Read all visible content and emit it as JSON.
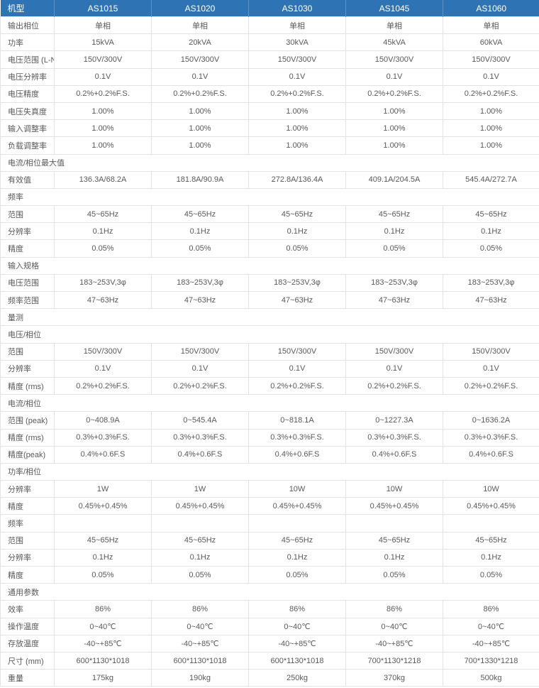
{
  "colors": {
    "header_bg": "#2E74B5",
    "header_text": "#FFFFFF",
    "header_separator": "#5B92C7",
    "grid_border": "#E3E3E3",
    "body_text": "#595959"
  },
  "table": {
    "header": {
      "label": "机型",
      "columns": [
        "AS1015",
        "AS1020",
        "AS1030",
        "AS1045",
        "AS1060"
      ]
    },
    "rows": [
      {
        "type": "data",
        "label": "输出相位",
        "values": [
          "单相",
          "单相",
          "单相",
          "单相",
          "单相"
        ]
      },
      {
        "type": "data",
        "label": "功率",
        "values": [
          "15kVA",
          "20kVA",
          "30kVA",
          "45kVA",
          "60kVA"
        ]
      },
      {
        "type": "data",
        "label": "电压范围 (L-N)",
        "values": [
          "150V/300V",
          "150V/300V",
          "150V/300V",
          "150V/300V",
          "150V/300V"
        ]
      },
      {
        "type": "data",
        "label": "电压分辨率",
        "values": [
          "0.1V",
          "0.1V",
          "0.1V",
          "0.1V",
          "0.1V"
        ]
      },
      {
        "type": "data",
        "label": "电压精度",
        "values": [
          "0.2%+0.2%F.S.",
          "0.2%+0.2%F.S.",
          "0.2%+0.2%F.S.",
          "0.2%+0.2%F.S.",
          "0.2%+0.2%F.S."
        ]
      },
      {
        "type": "data",
        "label": "电压失真度",
        "values": [
          "1.00%",
          "1.00%",
          "1.00%",
          "1.00%",
          "1.00%"
        ]
      },
      {
        "type": "data",
        "label": "输入调整率",
        "values": [
          "1.00%",
          "1.00%",
          "1.00%",
          "1.00%",
          "1.00%"
        ]
      },
      {
        "type": "data",
        "label": "负载调整率",
        "values": [
          "1.00%",
          "1.00%",
          "1.00%",
          "1.00%",
          "1.00%"
        ]
      },
      {
        "type": "section",
        "label": "电流/相位最大值"
      },
      {
        "type": "data",
        "label": "有效值",
        "values": [
          "136.3A/68.2A",
          "181.8A/90.9A",
          "272.8A/136.4A",
          "409.1A/204.5A",
          "545.4A/272.7A"
        ]
      },
      {
        "type": "section",
        "label": "频率"
      },
      {
        "type": "data",
        "label": "范围",
        "values": [
          "45~65Hz",
          "45~65Hz",
          "45~65Hz",
          "45~65Hz",
          "45~65Hz"
        ]
      },
      {
        "type": "data",
        "label": "分辨率",
        "values": [
          "0.1Hz",
          "0.1Hz",
          "0.1Hz",
          "0.1Hz",
          "0.1Hz"
        ]
      },
      {
        "type": "data",
        "label": "精度",
        "values": [
          "0.05%",
          "0.05%",
          "0.05%",
          "0.05%",
          "0.05%"
        ]
      },
      {
        "type": "section",
        "label": "输入规格"
      },
      {
        "type": "data",
        "label": "电压范围",
        "values": [
          "183~253V,3φ",
          "183~253V,3φ",
          "183~253V,3φ",
          "183~253V,3φ",
          "183~253V,3φ"
        ]
      },
      {
        "type": "data",
        "label": "频率范围",
        "values": [
          "47~63Hz",
          "47~63Hz",
          "47~63Hz",
          "47~63Hz",
          "47~63Hz"
        ]
      },
      {
        "type": "section",
        "label": "量测"
      },
      {
        "type": "section",
        "label": "电压/相位"
      },
      {
        "type": "data",
        "label": "范围",
        "values": [
          "150V/300V",
          "150V/300V",
          "150V/300V",
          "150V/300V",
          "150V/300V"
        ]
      },
      {
        "type": "data",
        "label": "分辨率",
        "values": [
          "0.1V",
          "0.1V",
          "0.1V",
          "0.1V",
          "0.1V"
        ]
      },
      {
        "type": "data",
        "label": "精度 (rms)",
        "values": [
          "0.2%+0.2%F.S.",
          "0.2%+0.2%F.S.",
          "0.2%+0.2%F.S.",
          "0.2%+0.2%F.S.",
          "0.2%+0.2%F.S."
        ]
      },
      {
        "type": "section",
        "label": "电流/相位"
      },
      {
        "type": "data",
        "label": "范围 (peak)",
        "values": [
          "0~408.9A",
          "0~545.4A",
          "0~818.1A",
          "0~1227.3A",
          "0~1636.2A"
        ]
      },
      {
        "type": "data",
        "label": "精度 (rms)",
        "values": [
          "0.3%+0.3%F.S.",
          "0.3%+0.3%F.S.",
          "0.3%+0.3%F.S.",
          "0.3%+0.3%F.S.",
          "0.3%+0.3%F.S."
        ]
      },
      {
        "type": "data",
        "label": "精度(peak)",
        "values": [
          "0.4%+0.6F.S",
          "0.4%+0.6F.S",
          "0.4%+0.6F.S",
          "0.4%+0.6F.S",
          "0.4%+0.6F.S"
        ]
      },
      {
        "type": "section",
        "label": "功率/相位"
      },
      {
        "type": "data",
        "label": "分辨率",
        "values": [
          "1W",
          "1W",
          "10W",
          "10W",
          "10W"
        ]
      },
      {
        "type": "data",
        "label": "精度",
        "values": [
          "0.45%+0.45%",
          "0.45%+0.45%",
          "0.45%+0.45%",
          "0.45%+0.45%",
          "0.45%+0.45%"
        ]
      },
      {
        "type": "data",
        "label": "频率",
        "values": [
          "",
          "",
          "",
          "",
          ""
        ]
      },
      {
        "type": "data",
        "label": "范围",
        "values": [
          "45~65Hz",
          "45~65Hz",
          "45~65Hz",
          "45~65Hz",
          "45~65Hz"
        ]
      },
      {
        "type": "data",
        "label": "分辨率",
        "values": [
          "0.1Hz",
          "0.1Hz",
          "0.1Hz",
          "0.1Hz",
          "0.1Hz"
        ]
      },
      {
        "type": "data",
        "label": "精度",
        "values": [
          "0.05%",
          "0.05%",
          "0.05%",
          "0.05%",
          "0.05%"
        ]
      },
      {
        "type": "section",
        "label": "通用参数"
      },
      {
        "type": "data",
        "label": "效率",
        "values": [
          "86%",
          "86%",
          "86%",
          "86%",
          "86%"
        ]
      },
      {
        "type": "data",
        "label": "操作温度",
        "values": [
          "0~40℃",
          "0~40℃",
          "0~40℃",
          "0~40℃",
          "0~40℃"
        ]
      },
      {
        "type": "data",
        "label": "存放温度",
        "values": [
          "-40~+85℃",
          "-40~+85℃",
          "-40~+85℃",
          "-40~+85℃",
          "-40~+85℃"
        ]
      },
      {
        "type": "data",
        "label": "尺寸 (mm)",
        "values": [
          "600*1130*1018",
          "600*1130*1018",
          "600*1130*1018",
          "700*1130*1218",
          "700*1330*1218"
        ]
      },
      {
        "type": "data",
        "label": "重量",
        "values": [
          "175kg",
          "190kg",
          "250kg",
          "370kg",
          "500kg"
        ]
      }
    ]
  }
}
